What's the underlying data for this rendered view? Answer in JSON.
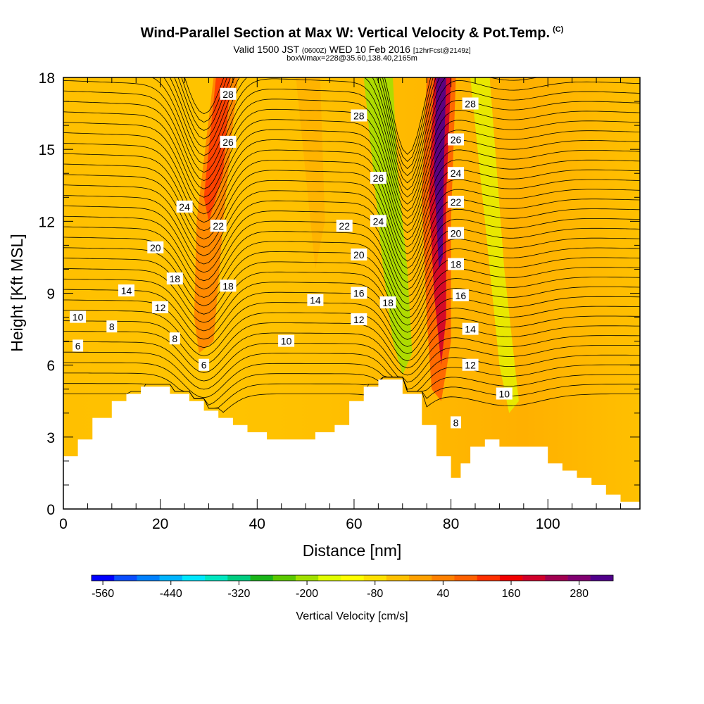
{
  "header": {
    "title": "Wind-Parallel Section at Max W: Vertical Velocity & Pot.Temp.",
    "title_mark": "(C)",
    "valid_prefix": "Valid 1500 JST",
    "valid_z": "(0600Z)",
    "valid_date": "WED 10 Feb 2016",
    "valid_fcst": "[12hrFcst@2149z]",
    "box_info": "boxWmax=228@35.60,138.40,2165m"
  },
  "colorbar": {
    "colors": [
      "#0000ff",
      "#0a4dff",
      "#0080ff",
      "#00b3ff",
      "#00e6ff",
      "#00e6c0",
      "#00cc80",
      "#19b419",
      "#5ac800",
      "#a0e000",
      "#e0ff00",
      "#ffff00",
      "#ffe000",
      "#ffc000",
      "#ffa000",
      "#ff8000",
      "#ff6000",
      "#ff3000",
      "#f00000",
      "#d0002a",
      "#a00050",
      "#800070",
      "#50008a"
    ],
    "tick_labels": [
      "-560",
      "-440",
      "-320",
      "-200",
      "-80",
      "40",
      "160",
      "280"
    ],
    "label": "Vertical Velocity [cm/s]"
  },
  "chart_data": {
    "type": "contour",
    "xlabel": "Distance [nm]",
    "ylabel": "Height [Kft MSL]",
    "xlim": [
      0,
      119
    ],
    "ylim": [
      0,
      18
    ],
    "x_ticks": [
      "0",
      "20",
      "40",
      "60",
      "80",
      "100"
    ],
    "y_ticks": [
      "0",
      "3",
      "6",
      "9",
      "12",
      "15",
      "18"
    ],
    "terrain": {
      "x": [
        0,
        3,
        3,
        6,
        6,
        10,
        10,
        13,
        13,
        16,
        16,
        22,
        22,
        26,
        26,
        29,
        29,
        32,
        32,
        35,
        35,
        38,
        38,
        42,
        42,
        48,
        48,
        52,
        52,
        56,
        56,
        59,
        59,
        62,
        62,
        65,
        65,
        70,
        70,
        74,
        74,
        77,
        77,
        80,
        80,
        82,
        82,
        84,
        84,
        87,
        87,
        90,
        90,
        100,
        100,
        103,
        103,
        106,
        106,
        109,
        109,
        112,
        112,
        115,
        115,
        119
      ],
      "h": [
        2.2,
        2.2,
        2.9,
        2.9,
        3.8,
        3.8,
        4.5,
        4.5,
        4.8,
        4.8,
        5.1,
        5.1,
        4.8,
        4.8,
        4.5,
        4.5,
        4.1,
        4.1,
        3.8,
        3.8,
        3.5,
        3.5,
        3.2,
        3.2,
        2.9,
        2.9,
        2.9,
        2.9,
        3.2,
        3.2,
        3.5,
        3.5,
        4.5,
        4.5,
        5.1,
        5.1,
        5.4,
        5.4,
        4.8,
        4.8,
        3.5,
        3.5,
        2.2,
        2.2,
        1.3,
        1.3,
        1.9,
        1.9,
        2.6,
        2.6,
        2.9,
        2.9,
        2.6,
        2.6,
        1.9,
        1.9,
        1.6,
        1.6,
        1.3,
        1.3,
        1.0,
        1.0,
        0.6,
        0.6,
        0.3,
        0.3
      ]
    },
    "theta_levels": [
      6,
      8,
      10,
      12,
      14,
      16,
      18,
      20,
      22,
      24,
      26,
      28
    ],
    "contour_labels": [
      {
        "text": "6",
        "x": 3,
        "y": 6.8
      },
      {
        "text": "8",
        "x": 10,
        "y": 7.6
      },
      {
        "text": "10",
        "x": 3,
        "y": 8.0
      },
      {
        "text": "14",
        "x": 13,
        "y": 9.1
      },
      {
        "text": "20",
        "x": 19,
        "y": 10.9
      },
      {
        "text": "24",
        "x": 25,
        "y": 12.6
      },
      {
        "text": "12",
        "x": 20,
        "y": 8.4
      },
      {
        "text": "18",
        "x": 23,
        "y": 9.6
      },
      {
        "text": "8",
        "x": 23,
        "y": 7.1
      },
      {
        "text": "6",
        "x": 29,
        "y": 6.0
      },
      {
        "text": "18",
        "x": 34,
        "y": 9.3
      },
      {
        "text": "22",
        "x": 32,
        "y": 11.8
      },
      {
        "text": "26",
        "x": 34,
        "y": 15.3
      },
      {
        "text": "28",
        "x": 34,
        "y": 17.3
      },
      {
        "text": "10",
        "x": 46,
        "y": 7.0
      },
      {
        "text": "14",
        "x": 52,
        "y": 8.7
      },
      {
        "text": "22",
        "x": 58,
        "y": 11.8
      },
      {
        "text": "28",
        "x": 61,
        "y": 16.4
      },
      {
        "text": "12",
        "x": 61,
        "y": 7.9
      },
      {
        "text": "16",
        "x": 61,
        "y": 9.0
      },
      {
        "text": "20",
        "x": 61,
        "y": 10.6
      },
      {
        "text": "26",
        "x": 65,
        "y": 13.8
      },
      {
        "text": "24",
        "x": 65,
        "y": 12.0
      },
      {
        "text": "18",
        "x": 67,
        "y": 8.6
      },
      {
        "text": "8",
        "x": 81,
        "y": 3.6
      },
      {
        "text": "28",
        "x": 84,
        "y": 16.9
      },
      {
        "text": "26",
        "x": 81,
        "y": 15.4
      },
      {
        "text": "24",
        "x": 81,
        "y": 14.0
      },
      {
        "text": "22",
        "x": 81,
        "y": 12.8
      },
      {
        "text": "20",
        "x": 81,
        "y": 11.5
      },
      {
        "text": "18",
        "x": 81,
        "y": 10.2
      },
      {
        "text": "16",
        "x": 82,
        "y": 8.9
      },
      {
        "text": "14",
        "x": 84,
        "y": 7.5
      },
      {
        "text": "12",
        "x": 84,
        "y": 6.0
      },
      {
        "text": "10",
        "x": 91,
        "y": 4.8
      }
    ],
    "wmax": 228
  }
}
